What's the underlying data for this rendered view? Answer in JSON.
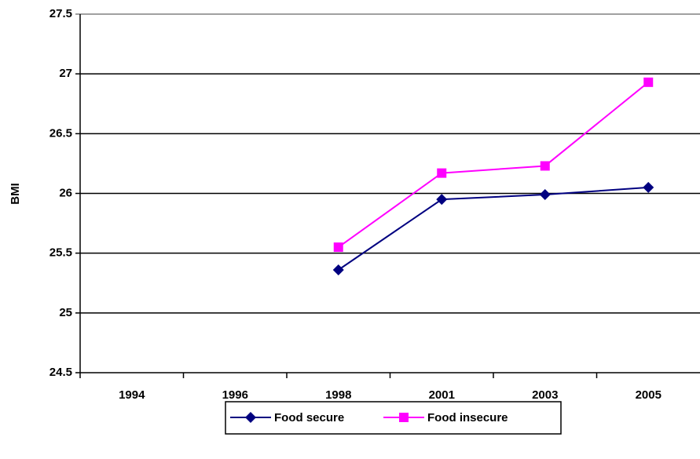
{
  "chart_data": {
    "type": "line",
    "y_label": "BMI",
    "categories": [
      "1994",
      "1996",
      "1998",
      "2001",
      "2003",
      "2005"
    ],
    "series": [
      {
        "name": "Food secure",
        "color": "#000080",
        "marker": "diamond",
        "values": [
          null,
          null,
          25.36,
          25.95,
          25.99,
          26.05
        ]
      },
      {
        "name": "Food insecure",
        "color": "#ff00ff",
        "marker": "square",
        "values": [
          null,
          null,
          25.55,
          26.17,
          26.23,
          26.93
        ]
      }
    ],
    "ylim": [
      24.5,
      27.5
    ],
    "yticks": [
      24.5,
      25,
      25.5,
      26,
      26.5,
      27,
      27.5
    ],
    "grid": true
  }
}
